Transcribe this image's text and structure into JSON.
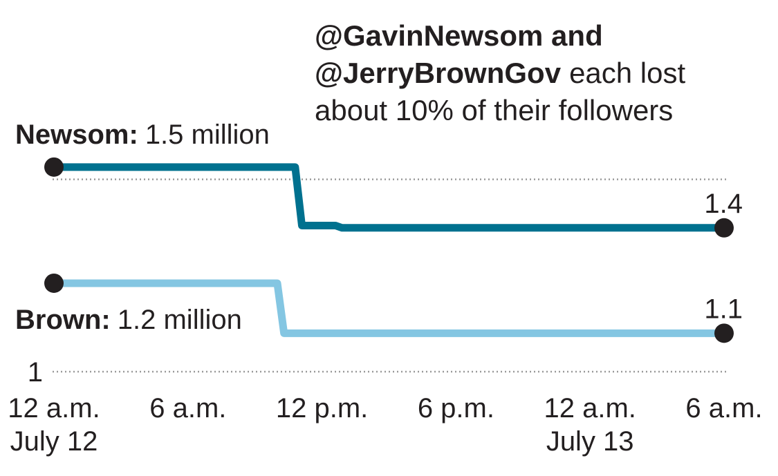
{
  "chart_data": {
    "type": "line",
    "title_lines": [
      [
        {
          "text": "@GavinNewsom and",
          "bold": true
        }
      ],
      [
        {
          "text": "@JerryBrownGov",
          "bold": true
        },
        {
          "text": "each lost",
          "bold": false
        }
      ],
      [
        {
          "text": "about 10% of their followers",
          "bold": false
        }
      ]
    ],
    "xlim": [
      0,
      30
    ],
    "xticks": [
      {
        "value": 0,
        "label": "12 a.m."
      },
      {
        "value": 6,
        "label": "6 a.m."
      },
      {
        "value": 12,
        "label": "12 p.m."
      },
      {
        "value": 18,
        "label": "6 p.m."
      },
      {
        "value": 24,
        "label": "12 a.m."
      },
      {
        "value": 30,
        "label": "6 a.m."
      }
    ],
    "x_date_labels": [
      {
        "value": 0,
        "label": "July 12"
      },
      {
        "value": 24,
        "label": "July 13"
      }
    ],
    "ylim": [
      1,
      1.6
    ],
    "yticks": [
      1
    ],
    "gridlines": [
      1,
      1.5
    ],
    "series": [
      {
        "name": "Newsom:",
        "start_label": "1.5 million",
        "end_label": "1.4",
        "color": "#00718f",
        "x": [
          0,
          10.8,
          11.1,
          12.6,
          12.9,
          30
        ],
        "values": [
          1.532,
          1.532,
          1.38,
          1.38,
          1.374,
          1.374
        ]
      },
      {
        "name": "Brown:",
        "start_label": "1.2 million",
        "end_label": "1.1",
        "color": "#84c6e2",
        "x": [
          0,
          10,
          10.3,
          30
        ],
        "values": [
          1.23,
          1.23,
          1.1,
          1.1
        ]
      }
    ]
  }
}
